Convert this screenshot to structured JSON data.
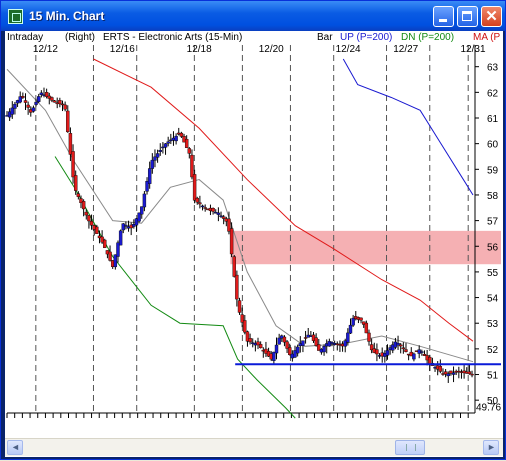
{
  "window": {
    "title": "15 Min. Chart",
    "icon": "chart-app-icon",
    "controls": [
      "minimize-icon",
      "maximize-icon",
      "close-icon"
    ],
    "close_glyph": "✕"
  },
  "header": {
    "mode": "Intraday",
    "axis_side": "(Right)",
    "symbol": "ERTS - Electronic Arts (15-Min)",
    "style": "Bar",
    "up_label": "UP (P=200)",
    "dn_label": "DN (P=200)",
    "ma_label": "MA (P"
  },
  "colors": {
    "up_bar": "#1a1ad0",
    "down_bar": "#e01a1a",
    "up_band": "#1a1ad0",
    "down_band": "#138a13",
    "moving_average": "#e01a1a",
    "fast_ma": "#8a8a8a",
    "resistance_zone": "#f4a7ab",
    "support_line": "#0a1ad8"
  },
  "chart_data": {
    "type": "candlestick",
    "x_tick_labels": [
      "12/12",
      "12/16",
      "12/18",
      "12/20",
      "12/24",
      "12/27",
      "12/31"
    ],
    "y_tick_labels": [
      63,
      62,
      61,
      60,
      59,
      58,
      57,
      56,
      55,
      54,
      53,
      52,
      51,
      50
    ],
    "last_price_label": "49.76",
    "ylim": [
      49.5,
      63.3
    ],
    "price_path": [
      [
        0,
        61.1
      ],
      [
        3,
        61.9
      ],
      [
        5,
        61.2
      ],
      [
        7,
        62.0
      ],
      [
        10,
        61.6
      ],
      [
        12,
        61.5
      ],
      [
        14,
        58.3
      ],
      [
        17,
        57.0
      ],
      [
        20,
        56.1
      ],
      [
        22,
        55.2
      ],
      [
        24,
        56.9
      ],
      [
        26,
        56.7
      ],
      [
        28,
        57.5
      ],
      [
        30,
        59.3
      ],
      [
        33,
        60.0
      ],
      [
        36,
        60.4
      ],
      [
        38,
        59.6
      ],
      [
        39,
        57.8
      ],
      [
        42,
        57.4
      ],
      [
        44,
        57.3
      ],
      [
        46,
        56.9
      ],
      [
        47,
        55.3
      ],
      [
        48,
        53.7
      ],
      [
        50,
        52.3
      ],
      [
        52,
        52.2
      ],
      [
        55,
        51.6
      ],
      [
        57,
        52.6
      ],
      [
        59,
        51.7
      ],
      [
        61,
        52.2
      ],
      [
        63,
        52.6
      ],
      [
        65,
        51.9
      ],
      [
        67,
        52.3
      ],
      [
        70,
        52.1
      ],
      [
        72,
        53.2
      ],
      [
        74,
        53.1
      ],
      [
        76,
        51.9
      ],
      [
        78,
        51.7
      ],
      [
        81,
        52.3
      ],
      [
        84,
        51.7
      ],
      [
        86,
        52.0
      ],
      [
        88,
        51.4
      ],
      [
        89,
        51.3
      ],
      [
        91,
        51.0
      ],
      [
        94,
        51.1
      ],
      [
        97,
        51.0
      ]
    ],
    "moving_average": [
      [
        18,
        63.3
      ],
      [
        30,
        62.2
      ],
      [
        40,
        60.6
      ],
      [
        50,
        58.6
      ],
      [
        60,
        56.8
      ],
      [
        68,
        55.9
      ],
      [
        78,
        54.7
      ],
      [
        86,
        53.9
      ],
      [
        92,
        53.0
      ],
      [
        97,
        52.3
      ]
    ],
    "fast_ma": [
      [
        0,
        62.9
      ],
      [
        8,
        61.3
      ],
      [
        14,
        59.3
      ],
      [
        22,
        57.0
      ],
      [
        28,
        56.9
      ],
      [
        34,
        58.3
      ],
      [
        40,
        58.6
      ],
      [
        45,
        57.8
      ],
      [
        50,
        55.0
      ],
      [
        56,
        52.9
      ],
      [
        62,
        52.1
      ],
      [
        70,
        52.2
      ],
      [
        78,
        52.5
      ],
      [
        86,
        52.1
      ],
      [
        97,
        51.5
      ]
    ],
    "upper_band": [
      [
        70,
        63.3
      ],
      [
        73,
        62.3
      ],
      [
        80,
        61.8
      ],
      [
        86,
        61.3
      ],
      [
        90,
        60.1
      ],
      [
        95,
        58.6
      ],
      [
        97,
        58.0
      ]
    ],
    "lower_band": [
      [
        10,
        59.5
      ],
      [
        14,
        58.3
      ],
      [
        22,
        55.6
      ],
      [
        30,
        53.7
      ],
      [
        36,
        53.0
      ],
      [
        45,
        52.9
      ],
      [
        48,
        51.6
      ],
      [
        52,
        50.8
      ],
      [
        58,
        49.7
      ],
      [
        60,
        49.3
      ]
    ],
    "resistance_zone": [
      55.3,
      56.6
    ],
    "support_level": 51.4
  },
  "scrollbar": {
    "left_arrow": "◄",
    "right_arrow": "►"
  }
}
